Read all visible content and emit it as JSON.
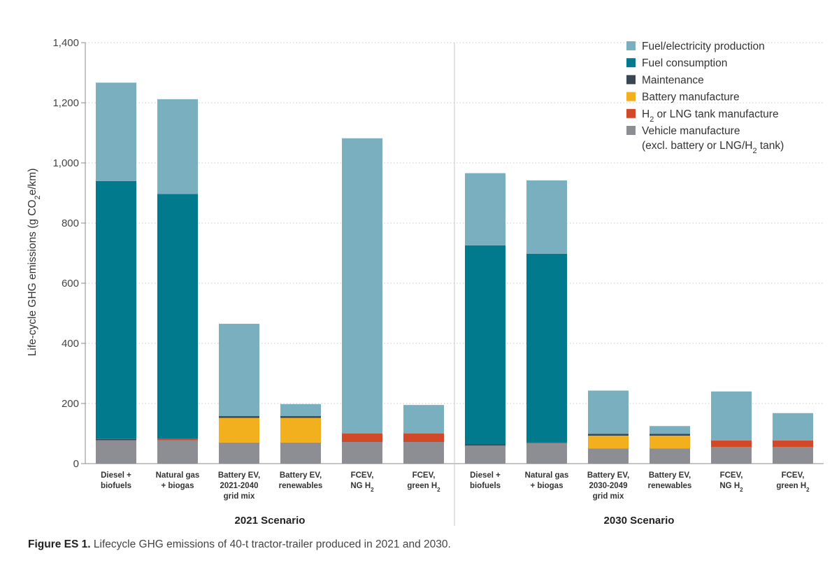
{
  "chart_data": {
    "type": "bar",
    "stacked": true,
    "ylabel": "Life-cycle GHG emissions (g CO₂e/km)",
    "ylim": [
      0,
      1400
    ],
    "yticks": [
      "0",
      "200",
      "400",
      "600",
      "800",
      "1,000",
      "1,200",
      "1,400"
    ],
    "grid": "horizontal dotted",
    "legend_position": "top-right",
    "groups": [
      {
        "label": "2021 Scenario",
        "categories": [
          [
            "Diesel +",
            "biofuels"
          ],
          [
            "Natural gas",
            "+ biogas"
          ],
          [
            "Battery EV,",
            "2021-2040",
            "grid mix"
          ],
          [
            "Battery EV,",
            "renewables"
          ],
          [
            "FCEV,",
            "NG H₂"
          ],
          [
            "FCEV,",
            "green H₂"
          ]
        ]
      },
      {
        "label": "2030 Scenario",
        "categories": [
          [
            "Diesel +",
            "biofuels"
          ],
          [
            "Natural gas",
            "+ biogas"
          ],
          [
            "Battery EV,",
            "2030-2049",
            "grid mix"
          ],
          [
            "Battery EV,",
            "renewables"
          ],
          [
            "FCEV,",
            "NG H₂"
          ],
          [
            "FCEV,",
            "green H₂"
          ]
        ]
      }
    ],
    "series": [
      {
        "name": "Vehicle manufacture (excl. battery or LNG/H₂ tank)",
        "color": "#8c8e94",
        "values": [
          78,
          78,
          70,
          70,
          72,
          72,
          60,
          67,
          50,
          50,
          55,
          55
        ]
      },
      {
        "name": "H₂ or LNG tank manufacture",
        "color": "#d2492a",
        "values": [
          0,
          4,
          0,
          0,
          28,
          28,
          0,
          3,
          0,
          0,
          22,
          22
        ]
      },
      {
        "name": "Battery manufacture",
        "color": "#f2b01e",
        "values": [
          0,
          0,
          82,
          82,
          0,
          0,
          0,
          0,
          43,
          43,
          0,
          0
        ]
      },
      {
        "name": "Maintenance",
        "color": "#3a4752",
        "values": [
          4,
          0,
          6,
          6,
          0,
          0,
          4,
          0,
          6,
          6,
          0,
          0
        ]
      },
      {
        "name": "Fuel consumption",
        "color": "#007a8c",
        "values": [
          858,
          815,
          0,
          0,
          0,
          0,
          662,
          628,
          0,
          0,
          0,
          0
        ]
      },
      {
        "name": "Fuel/electricity production",
        "color": "#7aafc0",
        "values": [
          327,
          315,
          307,
          40,
          982,
          95,
          240,
          244,
          144,
          26,
          163,
          91
        ]
      }
    ],
    "legend": [
      {
        "label": "Fuel/electricity production",
        "color": "#7aafc0"
      },
      {
        "label": "Fuel consumption",
        "color": "#007a8c"
      },
      {
        "label": "Maintenance",
        "color": "#3a4752"
      },
      {
        "label": "Battery manufacture",
        "color": "#f2b01e"
      },
      {
        "label": "H₂ or LNG tank manufacture",
        "color": "#d2492a"
      },
      {
        "label": [
          "Vehicle manufacture",
          "(excl. battery or LNG/H₂ tank)"
        ],
        "color": "#8c8e94"
      }
    ]
  },
  "caption": {
    "label": "Figure ES 1.",
    "text": "Lifecycle GHG emissions of 40-t tractor-trailer produced in 2021 and 2030."
  }
}
